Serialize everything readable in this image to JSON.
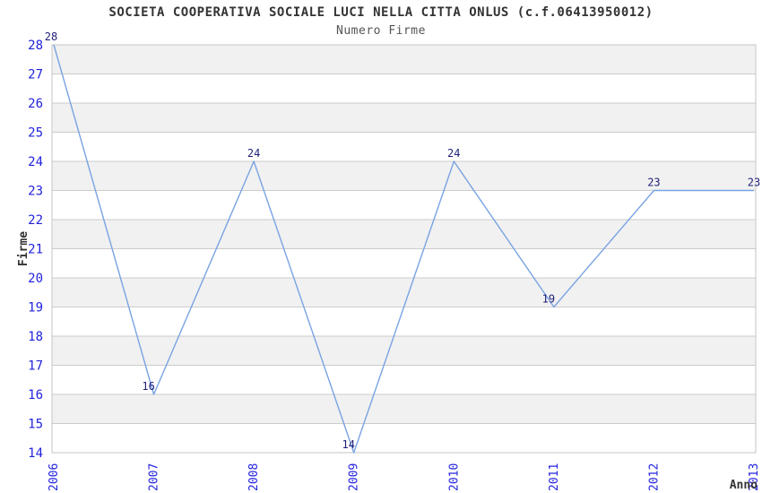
{
  "header": {
    "title": "SOCIETA COOPERATIVA SOCIALE LUCI NELLA CITTA ONLUS (c.f.06413950012)",
    "subtitle": "Numero Firme"
  },
  "chart_data": {
    "type": "line",
    "title": "SOCIETA COOPERATIVA SOCIALE LUCI NELLA CITTA ONLUS (c.f.06413950012)",
    "subtitle": "Numero Firme",
    "x": [
      "2006",
      "2007",
      "2008",
      "2009",
      "2010",
      "2011",
      "2012",
      "2013"
    ],
    "series": [
      {
        "name": "Numero Firme",
        "values": [
          28,
          16,
          24,
          14,
          24,
          19,
          23,
          23
        ]
      }
    ],
    "data_labels": [
      "28",
      "16",
      "24",
      "14",
      "24",
      "19",
      "23",
      "23"
    ],
    "xlabel": "Anno",
    "ylabel": "Firme",
    "ylim": [
      14,
      28
    ],
    "ytick_step": 1,
    "yticks": [
      14,
      15,
      16,
      17,
      18,
      19,
      20,
      21,
      22,
      23,
      24,
      25,
      26,
      27,
      28
    ],
    "grid": true,
    "legend_position": "none",
    "colors": {
      "line": "#79a3e2",
      "tick_label": "#2222dd",
      "data_label": "#1f1f78",
      "axis_title": "#333333",
      "band": "#f1f1f1",
      "grid_line": "#cccccc",
      "plot_border": "#c6c6c6",
      "background": "#ffffff"
    }
  }
}
